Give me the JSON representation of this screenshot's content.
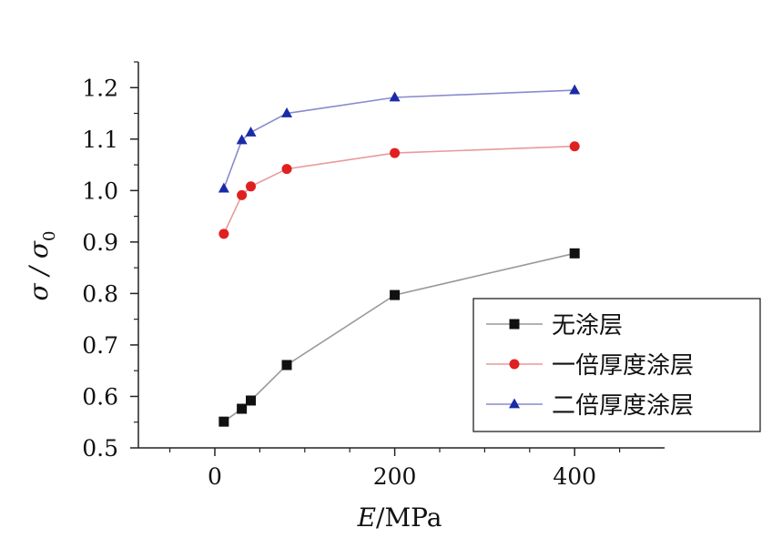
{
  "chart_data": {
    "type": "line",
    "xlabel_italic": "E",
    "xlabel_unit": "/MPa",
    "ylabel": "σ / σ",
    "ylabel_subscript": "0",
    "xlim": [
      -85,
      500
    ],
    "ylim": [
      0.5,
      1.25
    ],
    "xticks": [
      0,
      200,
      400
    ],
    "xticks_minor": [
      -50,
      50,
      100,
      150,
      250,
      300,
      350,
      450
    ],
    "yticks": [
      0.5,
      0.6,
      0.7,
      0.8,
      0.9,
      1.0,
      1.1,
      1.2
    ],
    "ytick_labels": [
      "0.5",
      "0.6",
      "0.7",
      "0.8",
      "0.9",
      "1.0",
      "1.1",
      "1.2"
    ],
    "legend_position": "bottom-right",
    "series": [
      {
        "name": "无涂层",
        "marker": "square",
        "color": "#999999",
        "marker_color": "#111111",
        "x": [
          10,
          30,
          40,
          80,
          200,
          400
        ],
        "y": [
          0.551,
          0.576,
          0.592,
          0.661,
          0.797,
          0.878
        ]
      },
      {
        "name": "一倍厚度涂层",
        "marker": "circle",
        "color": "#e89a9a",
        "marker_color": "#e02020",
        "x": [
          10,
          30,
          40,
          80,
          200,
          400
        ],
        "y": [
          0.916,
          0.991,
          1.008,
          1.042,
          1.073,
          1.086
        ]
      },
      {
        "name": "二倍厚度涂层",
        "marker": "triangle",
        "color": "#8a8ad0",
        "marker_color": "#1a2aa8",
        "x": [
          10,
          30,
          40,
          80,
          200,
          400
        ],
        "y": [
          1.004,
          1.098,
          1.113,
          1.15,
          1.181,
          1.195
        ]
      }
    ]
  }
}
